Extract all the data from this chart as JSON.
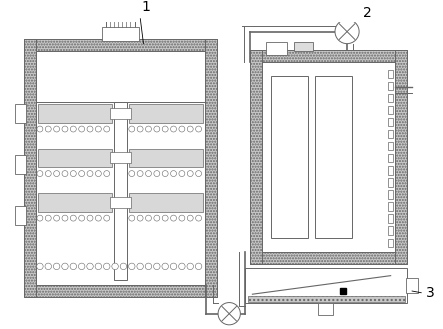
{
  "bg": "#ffffff",
  "lc": "#666666",
  "wall_fc": "#c8c8c8",
  "lw_main": 0.7,
  "lw_thick": 1.0
}
